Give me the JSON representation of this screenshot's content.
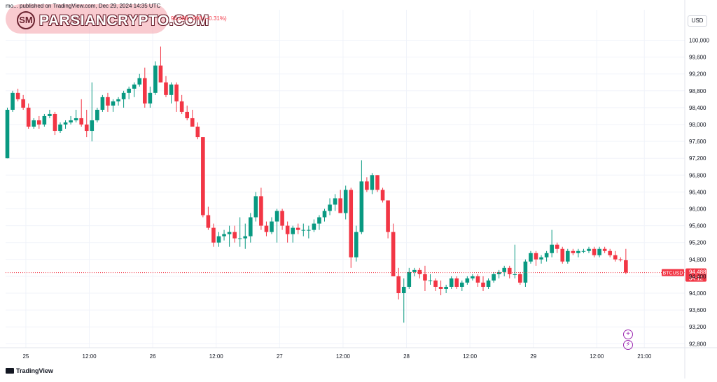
{
  "header": {
    "info_text": "mo... published on TradingView.com, Dec 29, 2024 14:35 UTC",
    "price_change": "94,488  −293 (−0.31%)",
    "currency_button": "USD"
  },
  "watermark": {
    "text": "PARSIANCRYPTO.COM",
    "logo_letters": "SM"
  },
  "footer": {
    "brand": "TradingView"
  },
  "icons": [
    "plus-icon",
    "lightning-icon"
  ],
  "colors": {
    "up": "#089981",
    "down": "#f23645",
    "last_line": "#f23645",
    "grid": "#f0f3fa"
  },
  "chart_data": {
    "type": "candlestick",
    "symbol": "BTCUSD",
    "timeframe_hours": 2,
    "last_price_label": "94,488",
    "countdown_label": "34:12",
    "y_ticks": [
      "100,000",
      "99,600",
      "99,200",
      "98,800",
      "98,400",
      "98,000",
      "97,600",
      "97,200",
      "96,800",
      "96,400",
      "96,000",
      "95,600",
      "95,200",
      "94,800",
      "94,400",
      "94,000",
      "93,600",
      "93,200",
      "92,800"
    ],
    "x_ticks": [
      {
        "label": "25",
        "i": 3.5
      },
      {
        "label": "12:00",
        "i": 15.5
      },
      {
        "label": "26",
        "i": 27.5
      },
      {
        "label": "12:00",
        "i": 39.5
      },
      {
        "label": "27",
        "i": 51.5
      },
      {
        "label": "12:00",
        "i": 63.5
      },
      {
        "label": "28",
        "i": 75.5
      },
      {
        "label": "12:00",
        "i": 87.5
      },
      {
        "label": "29",
        "i": 99.5
      },
      {
        "label": "12:00",
        "i": 111.5
      },
      {
        "label": "21:00",
        "i": 120.5
      }
    ],
    "ohlc": [
      [
        97200,
        98400,
        97200,
        98350
      ],
      [
        98350,
        98800,
        98300,
        98750
      ],
      [
        98750,
        98850,
        98550,
        98600
      ],
      [
        98600,
        98700,
        98350,
        98400
      ],
      [
        98400,
        98500,
        97900,
        97950
      ],
      [
        97950,
        98150,
        97900,
        98100
      ],
      [
        98100,
        98200,
        97900,
        98000
      ],
      [
        98000,
        98250,
        97950,
        98200
      ],
      [
        98200,
        98350,
        98150,
        98250
      ],
      [
        98250,
        98300,
        97750,
        97850
      ],
      [
        97850,
        98050,
        97800,
        98000
      ],
      [
        98000,
        98100,
        97900,
        98050
      ],
      [
        98050,
        98200,
        98000,
        98100
      ],
      [
        98100,
        98350,
        98050,
        98150
      ],
      [
        98150,
        98600,
        97950,
        98000
      ],
      [
        98000,
        98350,
        97700,
        97850
      ],
      [
        97850,
        99000,
        97600,
        98100
      ],
      [
        98100,
        98400,
        98050,
        98350
      ],
      [
        98350,
        98700,
        98300,
        98650
      ],
      [
        98650,
        98750,
        98300,
        98450
      ],
      [
        98450,
        98600,
        98300,
        98550
      ],
      [
        98550,
        98650,
        98450,
        98600
      ],
      [
        98600,
        98800,
        98400,
        98750
      ],
      [
        98750,
        98900,
        98600,
        98850
      ],
      [
        98850,
        99000,
        98650,
        98950
      ],
      [
        98950,
        99200,
        98900,
        99100
      ],
      [
        99100,
        99350,
        98400,
        98500
      ],
      [
        98500,
        98900,
        98400,
        98750
      ],
      [
        98750,
        99500,
        98700,
        99400
      ],
      [
        99400,
        99850,
        99000,
        99000
      ],
      [
        99000,
        99150,
        98650,
        98700
      ],
      [
        98700,
        99000,
        98500,
        98950
      ],
      [
        98950,
        99000,
        98300,
        98550
      ],
      [
        98550,
        98700,
        98250,
        98300
      ],
      [
        98300,
        98450,
        98100,
        98150
      ],
      [
        98150,
        98350,
        97950,
        97950
      ],
      [
        97950,
        98050,
        97650,
        97700
      ],
      [
        97700,
        97700,
        95800,
        95850
      ],
      [
        95850,
        96050,
        95500,
        95550
      ],
      [
        95550,
        95650,
        95100,
        95200
      ],
      [
        95200,
        95450,
        95100,
        95350
      ],
      [
        95350,
        95500,
        95250,
        95400
      ],
      [
        95400,
        95600,
        95100,
        95450
      ],
      [
        95450,
        95600,
        95200,
        95300
      ],
      [
        95300,
        95800,
        95100,
        95300
      ],
      [
        95300,
        95650,
        95050,
        95350
      ],
      [
        95350,
        95900,
        95200,
        95800
      ],
      [
        95800,
        96400,
        95700,
        96300
      ],
      [
        96300,
        96500,
        95500,
        95600
      ],
      [
        95600,
        95700,
        95350,
        95450
      ],
      [
        95450,
        95800,
        95400,
        95700
      ],
      [
        95700,
        96000,
        95200,
        95950
      ],
      [
        95950,
        96000,
        95500,
        95600
      ],
      [
        95600,
        95700,
        95200,
        95400
      ],
      [
        95400,
        95600,
        95200,
        95550
      ],
      [
        95550,
        95650,
        95400,
        95500
      ],
      [
        95500,
        95650,
        95350,
        95500
      ],
      [
        95500,
        95600,
        95300,
        95500
      ],
      [
        95500,
        95750,
        95450,
        95650
      ],
      [
        95650,
        95850,
        95500,
        95800
      ],
      [
        95800,
        96000,
        95700,
        95950
      ],
      [
        95950,
        96250,
        95850,
        96100
      ],
      [
        96100,
        96350,
        95950,
        96250
      ],
      [
        96250,
        96450,
        95900,
        95900
      ],
      [
        95900,
        96550,
        95750,
        96450
      ],
      [
        96450,
        96500,
        94600,
        94850
      ],
      [
        94850,
        95600,
        94750,
        95450
      ],
      [
        95450,
        97150,
        95400,
        96650
      ],
      [
        96650,
        96750,
        96400,
        96450
      ],
      [
        96450,
        96850,
        96350,
        96800
      ],
      [
        96800,
        96800,
        96400,
        96450
      ],
      [
        96450,
        96500,
        96150,
        96200
      ],
      [
        96200,
        96200,
        95300,
        95450
      ],
      [
        95450,
        95650,
        94400,
        94400
      ],
      [
        94400,
        94600,
        93850,
        94000
      ],
      [
        94000,
        94350,
        93300,
        94150
      ],
      [
        94150,
        94600,
        94100,
        94500
      ],
      [
        94500,
        94600,
        94400,
        94550
      ],
      [
        94550,
        94600,
        94350,
        94450
      ],
      [
        94450,
        94650,
        94050,
        94300
      ],
      [
        94300,
        94450,
        94200,
        94300
      ],
      [
        94300,
        94350,
        94050,
        94150
      ],
      [
        94150,
        94300,
        93950,
        94100
      ],
      [
        94100,
        94200,
        94000,
        94150
      ],
      [
        94150,
        94400,
        94100,
        94350
      ],
      [
        94350,
        94400,
        94100,
        94150
      ],
      [
        94150,
        94300,
        94050,
        94250
      ],
      [
        94250,
        94400,
        94200,
        94350
      ],
      [
        94350,
        94450,
        94300,
        94400
      ],
      [
        94400,
        94450,
        94150,
        94250
      ],
      [
        94250,
        94400,
        94050,
        94150
      ],
      [
        94150,
        94350,
        94100,
        94300
      ],
      [
        94300,
        94500,
        94250,
        94450
      ],
      [
        94450,
        94550,
        94350,
        94500
      ],
      [
        94500,
        94650,
        94400,
        94600
      ],
      [
        94600,
        94650,
        94350,
        94450
      ],
      [
        94450,
        95150,
        94350,
        94450
      ],
      [
        94450,
        94500,
        94200,
        94250
      ],
      [
        94250,
        94800,
        94150,
        94750
      ],
      [
        94750,
        95000,
        94700,
        94950
      ],
      [
        94950,
        95000,
        94650,
        94800
      ],
      [
        94800,
        94900,
        94700,
        94850
      ],
      [
        94850,
        95000,
        94750,
        94950
      ],
      [
        94950,
        95500,
        94850,
        95150
      ],
      [
        95150,
        95200,
        94950,
        95050
      ],
      [
        95050,
        95100,
        94700,
        94750
      ],
      [
        94750,
        95050,
        94700,
        95000
      ],
      [
        95000,
        95050,
        94900,
        94950
      ],
      [
        94950,
        95050,
        94850,
        95000
      ],
      [
        95000,
        95050,
        94950,
        95000
      ],
      [
        95000,
        95100,
        94950,
        95050
      ],
      [
        95050,
        95100,
        94850,
        94900
      ],
      [
        94900,
        95100,
        94850,
        95050
      ],
      [
        95050,
        95100,
        94950,
        95000
      ],
      [
        95000,
        95050,
        94850,
        94900
      ],
      [
        94900,
        95000,
        94750,
        94800
      ],
      [
        94800,
        94850,
        94750,
        94780
      ],
      [
        94781,
        95050,
        94450,
        94488
      ]
    ]
  }
}
